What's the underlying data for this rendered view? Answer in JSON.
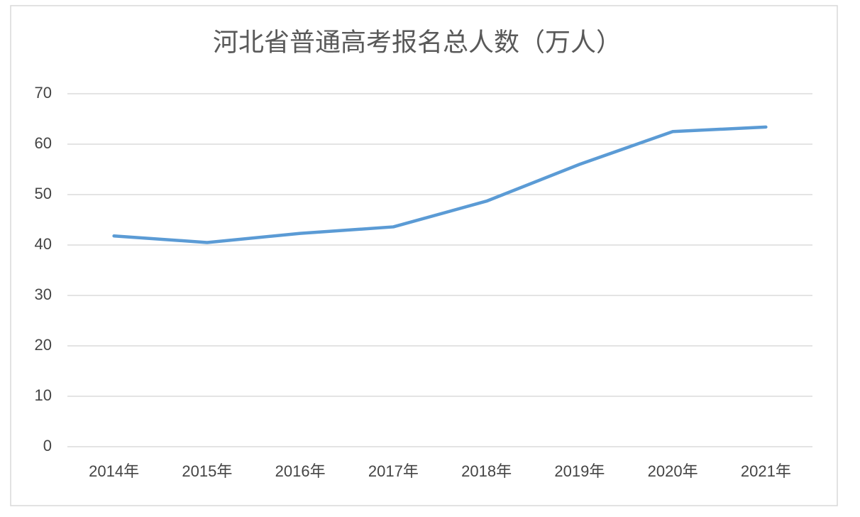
{
  "chart_data": {
    "type": "line",
    "title": "河北省普通高考报名总人数（万人）",
    "categories": [
      "2014年",
      "2015年",
      "2016年",
      "2017年",
      "2018年",
      "2019年",
      "2020年",
      "2021年"
    ],
    "values": [
      41.8,
      40.5,
      42.3,
      43.6,
      48.7,
      56,
      62.5,
      63.4
    ],
    "color": "#5b9bd5",
    "ylim": [
      0,
      70
    ],
    "yticks": [
      0,
      10,
      20,
      30,
      40,
      50,
      60,
      70
    ],
    "grid": true
  }
}
